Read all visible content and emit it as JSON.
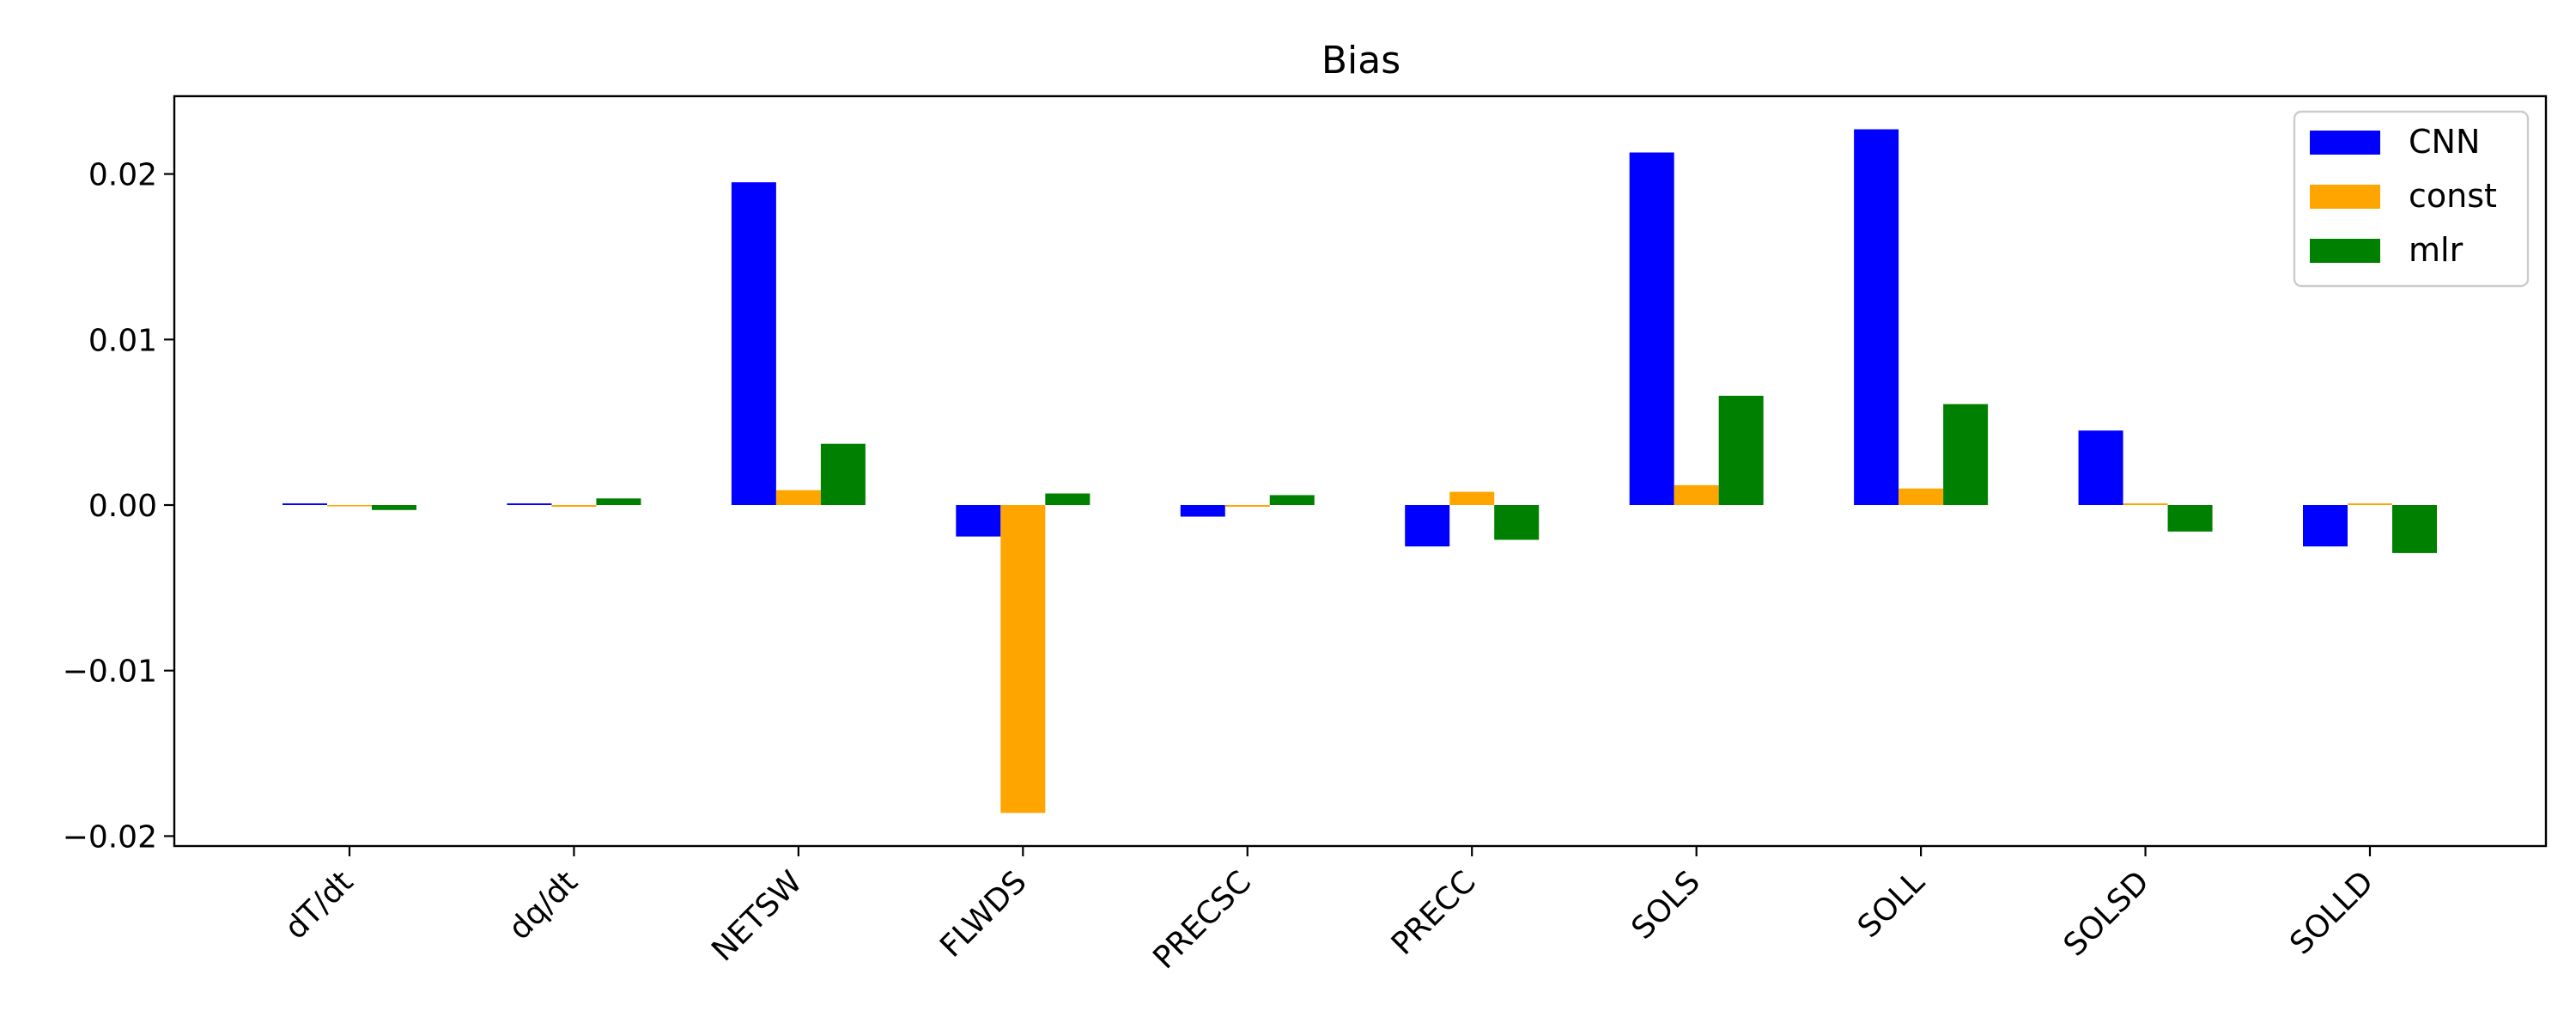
{
  "chart_data": {
    "type": "bar",
    "title": "Bias",
    "xlabel": "",
    "ylabel": "",
    "categories": [
      "dT/dt",
      "dq/dt",
      "NETSW",
      "FLWDS",
      "PRECSC",
      "PRECC",
      "SOLS",
      "SOLL",
      "SOLSD",
      "SOLLD"
    ],
    "series": [
      {
        "name": "CNN",
        "color": "#0000ff",
        "values": [
          0.0001,
          0.0001,
          0.0195,
          -0.0019,
          -0.0007,
          -0.0025,
          0.0213,
          0.0227,
          0.0045,
          -0.0025
        ]
      },
      {
        "name": "const",
        "color": "#ffa500",
        "values": [
          0.0,
          -0.0001,
          0.0009,
          -0.0186,
          -0.0001,
          0.0008,
          0.0012,
          0.001,
          0.0001,
          0.0001
        ]
      },
      {
        "name": "mlr",
        "color": "#008000",
        "values": [
          -0.0003,
          0.0004,
          0.0037,
          0.0007,
          0.0006,
          -0.0021,
          0.0066,
          0.0061,
          -0.0016,
          -0.0029
        ]
      }
    ],
    "ylim": [
      -0.0206,
      0.0247
    ],
    "yticks": [
      -0.02,
      -0.01,
      0.0,
      0.01,
      0.02
    ],
    "ytick_labels": [
      "−0.02",
      "−0.01",
      "0.00",
      "0.01",
      "0.02"
    ],
    "grid": false,
    "legend_position": "top-right"
  }
}
